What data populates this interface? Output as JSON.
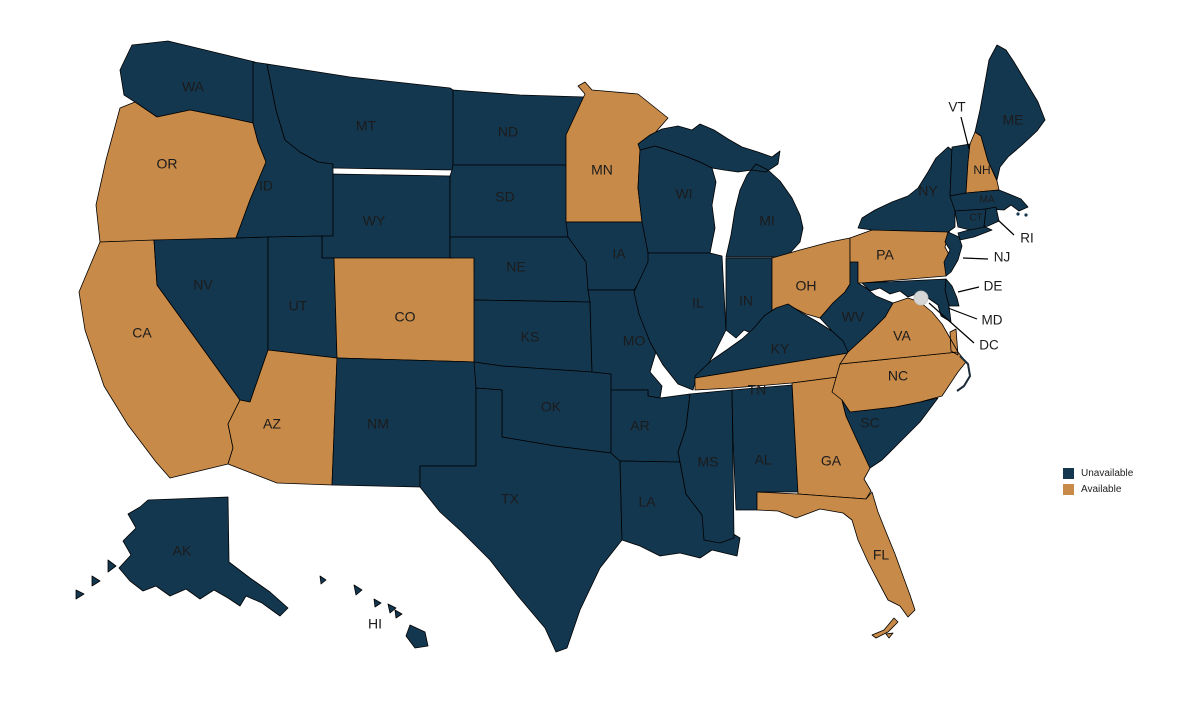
{
  "page": {
    "background": "#ffffff"
  },
  "legend": {
    "items": [
      {
        "label": "Unavailable",
        "status": "unavailable",
        "color": "#143750"
      },
      {
        "label": "Available",
        "status": "available",
        "color": "#C78A49"
      }
    ]
  },
  "map": {
    "stroke_color": "#000000",
    "label_color": "#1b1b1b",
    "dc_marker_color": "#d6d6d6",
    "states": [
      {
        "abbr": "WA",
        "status": "unavailable"
      },
      {
        "abbr": "OR",
        "status": "available"
      },
      {
        "abbr": "CA",
        "status": "available"
      },
      {
        "abbr": "NV",
        "status": "unavailable"
      },
      {
        "abbr": "ID",
        "status": "unavailable"
      },
      {
        "abbr": "MT",
        "status": "unavailable"
      },
      {
        "abbr": "WY",
        "status": "unavailable"
      },
      {
        "abbr": "UT",
        "status": "unavailable"
      },
      {
        "abbr": "CO",
        "status": "available"
      },
      {
        "abbr": "AZ",
        "status": "available"
      },
      {
        "abbr": "NM",
        "status": "unavailable"
      },
      {
        "abbr": "ND",
        "status": "unavailable"
      },
      {
        "abbr": "SD",
        "status": "unavailable"
      },
      {
        "abbr": "NE",
        "status": "unavailable"
      },
      {
        "abbr": "KS",
        "status": "unavailable"
      },
      {
        "abbr": "OK",
        "status": "unavailable"
      },
      {
        "abbr": "TX",
        "status": "unavailable"
      },
      {
        "abbr": "MN",
        "status": "available"
      },
      {
        "abbr": "IA",
        "status": "unavailable"
      },
      {
        "abbr": "MO",
        "status": "unavailable"
      },
      {
        "abbr": "AR",
        "status": "unavailable"
      },
      {
        "abbr": "LA",
        "status": "unavailable"
      },
      {
        "abbr": "WI",
        "status": "unavailable"
      },
      {
        "abbr": "MI",
        "status": "unavailable"
      },
      {
        "abbr": "IL",
        "status": "unavailable"
      },
      {
        "abbr": "IN",
        "status": "unavailable"
      },
      {
        "abbr": "OH",
        "status": "available"
      },
      {
        "abbr": "KY",
        "status": "unavailable"
      },
      {
        "abbr": "TN",
        "status": "available"
      },
      {
        "abbr": "MS",
        "status": "unavailable"
      },
      {
        "abbr": "AL",
        "status": "unavailable"
      },
      {
        "abbr": "GA",
        "status": "available"
      },
      {
        "abbr": "FL",
        "status": "available"
      },
      {
        "abbr": "SC",
        "status": "unavailable"
      },
      {
        "abbr": "NC",
        "status": "available"
      },
      {
        "abbr": "VA",
        "status": "available"
      },
      {
        "abbr": "WV",
        "status": "unavailable"
      },
      {
        "abbr": "PA",
        "status": "available"
      },
      {
        "abbr": "NY",
        "status": "unavailable"
      },
      {
        "abbr": "NJ",
        "status": "unavailable"
      },
      {
        "abbr": "DE",
        "status": "unavailable"
      },
      {
        "abbr": "MD",
        "status": "unavailable"
      },
      {
        "abbr": "VT",
        "status": "unavailable"
      },
      {
        "abbr": "NH",
        "status": "available"
      },
      {
        "abbr": "ME",
        "status": "unavailable"
      },
      {
        "abbr": "MA",
        "status": "unavailable"
      },
      {
        "abbr": "CT",
        "status": "unavailable"
      },
      {
        "abbr": "RI",
        "status": "unavailable"
      },
      {
        "abbr": "AK",
        "status": "unavailable"
      },
      {
        "abbr": "HI",
        "status": "unavailable"
      }
    ],
    "district": {
      "abbr": "DC",
      "marker": "gray-dot"
    },
    "callout_labels": [
      "VT",
      "RI",
      "NJ",
      "DE",
      "MD",
      "DC"
    ],
    "inline_small_labels": [
      "MA",
      "CT",
      "NH"
    ]
  }
}
